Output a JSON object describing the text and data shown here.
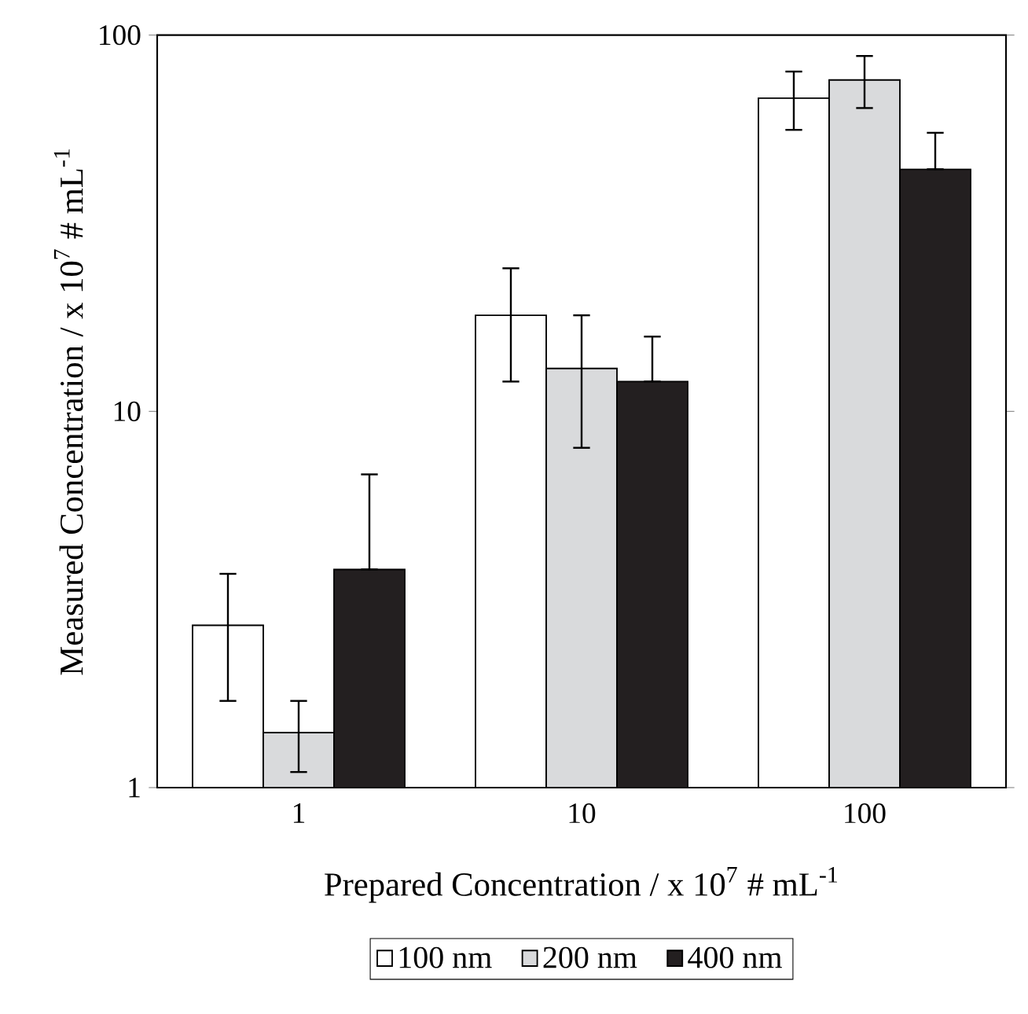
{
  "chart_data": {
    "type": "bar",
    "xlabel": "Prepared Concentration / x 10$^{7}$ # mL$^{-1}$",
    "ylabel": "Measured Concentration / x 10$^{7}$ # mL$^{-1}$",
    "categories": [
      "1",
      "10",
      "100"
    ],
    "log": "y",
    "ylim": [
      1,
      100
    ],
    "yticks": [
      1,
      10,
      100
    ],
    "grid": false,
    "legend": "bottom",
    "series": [
      {
        "name": "100 nm",
        "color": "#ffffff",
        "values": [
          2.7,
          18,
          68
        ],
        "errors": [
          1.0,
          6,
          12
        ]
      },
      {
        "name": "200 nm",
        "color": "#d9dadc",
        "values": [
          1.4,
          13,
          76
        ],
        "errors": [
          0.3,
          5,
          12
        ]
      },
      {
        "name": "400 nm",
        "color": "#231f20",
        "values": [
          3.8,
          12,
          44
        ],
        "errors": [
          [
            3.8,
            6.8
          ],
          [
            12,
            15.8
          ],
          [
            44,
            55
          ]
        ]
      }
    ]
  }
}
